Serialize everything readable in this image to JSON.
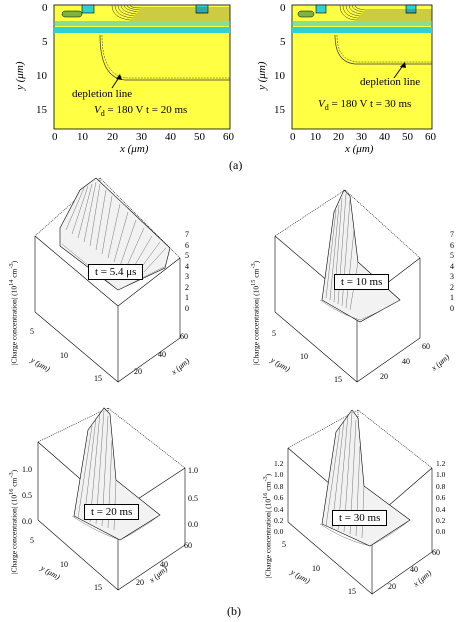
{
  "figure": {
    "part_a_label": "(a)",
    "part_b_label": "(b)"
  },
  "panels_a": [
    {
      "ylabel": "y (μm)",
      "xlabel": "x (μm)",
      "x_ticks": [
        "0",
        "10",
        "20",
        "30",
        "40",
        "50",
        "60"
      ],
      "y_ticks": [
        "0",
        "5",
        "10",
        "15"
      ],
      "annotation": "depletion line",
      "condition_vd": "V",
      "condition_vd_sub": "d",
      "condition_text": " = 180 V  t = 20 ms"
    },
    {
      "ylabel": "y (μm)",
      "xlabel": "x (μm)",
      "x_ticks": [
        "0",
        "10",
        "20",
        "30",
        "40",
        "50",
        "60"
      ],
      "y_ticks": [
        "0",
        "5",
        "10",
        "15"
      ],
      "annotation": "depletion line",
      "condition_vd": "V",
      "condition_vd_sub": "d",
      "condition_text": " = 180 V  t = 30 ms"
    }
  ],
  "panels_b": [
    {
      "t_label": "t = 5.4 μs",
      "zlabel": "|Charge concentration| (10",
      "z_exp": "14",
      "z_unit": "cm",
      "z_unit_exp": "-3",
      "z_ticks": [
        "0",
        "1",
        "2",
        "3",
        "4",
        "5",
        "6",
        "7"
      ],
      "y_ticks": [
        "5",
        "10",
        "15"
      ],
      "x_ticks": [
        "20",
        "40",
        "60"
      ],
      "ylabel": "y (μm)",
      "xlabel": "x (μm)"
    },
    {
      "t_label": "t = 10 ms",
      "zlabel": "|Charge concentration| (10",
      "z_exp": "15",
      "z_unit": "cm",
      "z_unit_exp": "-3",
      "z_ticks": [
        "0",
        "1",
        "2",
        "3",
        "4",
        "5",
        "6",
        "7"
      ],
      "y_ticks": [
        "5",
        "10",
        "15"
      ],
      "x_ticks": [
        "20",
        "40",
        "60"
      ],
      "ylabel": "y (μm)",
      "xlabel": "x (μm)"
    },
    {
      "t_label": "t = 20 ms",
      "zlabel": "|Charge concentration| (10",
      "z_exp": "16",
      "z_unit": "cm",
      "z_unit_exp": "-3",
      "z_ticks": [
        "0.0",
        "0.5",
        "1.0"
      ],
      "y_ticks": [
        "5",
        "10",
        "15"
      ],
      "x_ticks": [
        "20",
        "40",
        "60"
      ],
      "ylabel": "y (μm)",
      "xlabel": "x (μm)"
    },
    {
      "t_label": "t = 30 ms",
      "zlabel": "|Charge concentration| (10",
      "z_exp": "16",
      "z_unit": "cm",
      "z_unit_exp": "-3",
      "z_ticks": [
        "0.0",
        "0.2",
        "0.4",
        "0.6",
        "0.8",
        "1.0",
        "1.2"
      ],
      "y_ticks": [
        "5",
        "10",
        "15"
      ],
      "x_ticks": [
        "20",
        "40",
        "60"
      ],
      "ylabel": "y (μm)",
      "xlabel": "x (μm)"
    }
  ]
}
